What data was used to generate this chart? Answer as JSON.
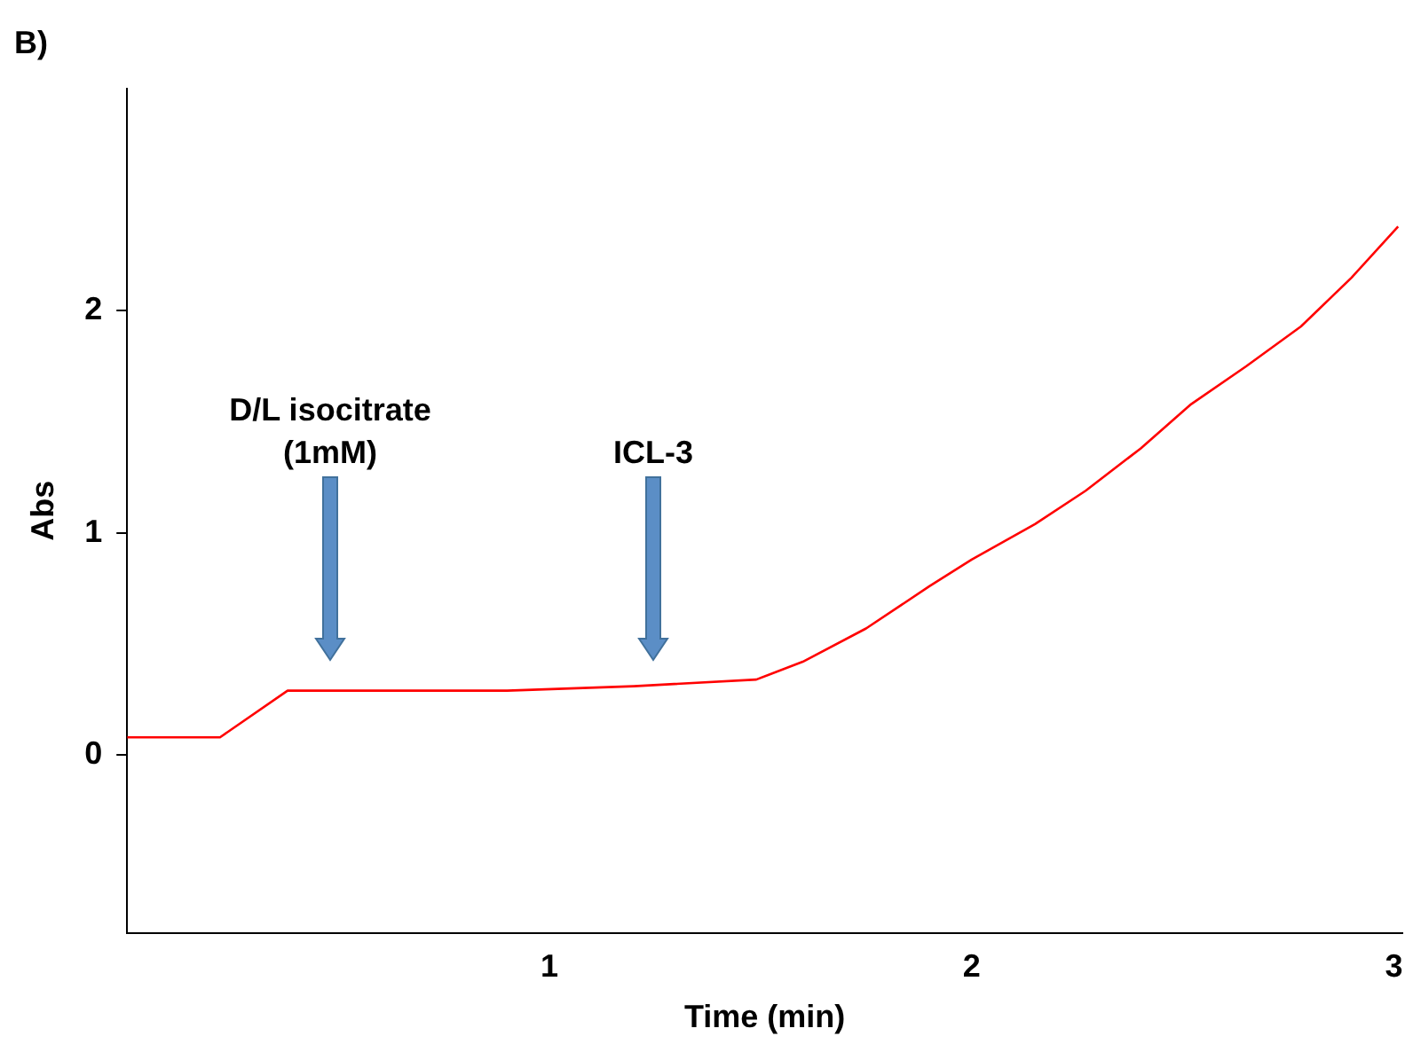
{
  "chart_data": {
    "type": "line",
    "title": "B)",
    "xlabel": "Time (min)",
    "ylabel": "Abs",
    "x": [
      0,
      0.22,
      0.38,
      0.6,
      0.9,
      1.2,
      1.49,
      1.6,
      1.75,
      1.9,
      2.0,
      2.15,
      2.27,
      2.4,
      2.52,
      2.65,
      2.78,
      2.9,
      3.01
    ],
    "series": [
      {
        "color": "#ff0000",
        "values": [
          0.08,
          0.08,
          0.29,
          0.29,
          0.29,
          0.31,
          0.34,
          0.42,
          0.57,
          0.76,
          0.88,
          1.04,
          1.19,
          1.38,
          1.58,
          1.75,
          1.93,
          2.15,
          2.38
        ]
      }
    ],
    "xlim": [
      0,
      3.02
    ],
    "ylim": [
      -0.8,
      3.0
    ],
    "xticks": [
      1,
      2,
      3
    ],
    "yticks": [
      0,
      1,
      2
    ],
    "grid": false,
    "legend": false,
    "marker": "none",
    "line_style": "solid",
    "annotations": [
      "D/L isocitrate\n(1mM)",
      "ICL-3"
    ]
  }
}
